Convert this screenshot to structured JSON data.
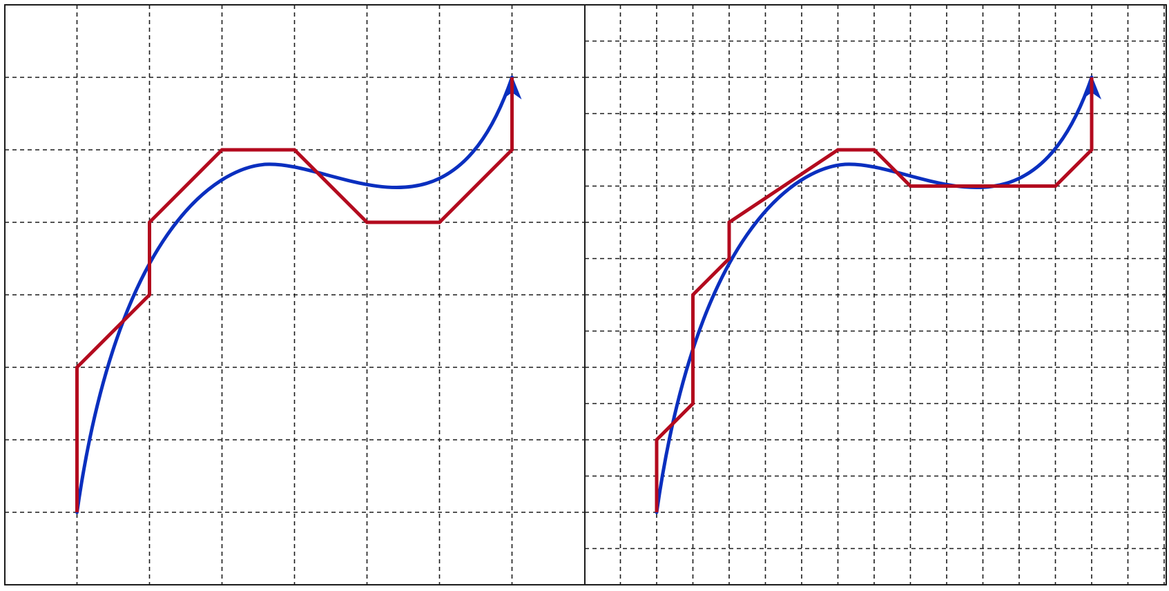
{
  "colors": {
    "curve": "#0a2fbf",
    "staircase": "#b30a1e",
    "grid": "#1a1a1a",
    "frame": "#1a1a1a",
    "background": "#ffffff"
  },
  "panels": [
    {
      "id": "coarse",
      "grid_step": 1,
      "curve": {
        "start": [
          0,
          0
        ],
        "c1": [
          0.55,
          3.85
        ],
        "c2": [
          1.9,
          4.75
        ],
        "mid": [
          2.6,
          4.8
        ],
        "c3": [
          3.6,
          4.85
        ],
        "c4": [
          5.15,
          3.5
        ],
        "end": [
          6,
          6
        ]
      },
      "staircase": [
        [
          0,
          0
        ],
        [
          0,
          2
        ],
        [
          1,
          3
        ],
        [
          1,
          4
        ],
        [
          2,
          5
        ],
        [
          3,
          5
        ],
        [
          4,
          4
        ],
        [
          5,
          4
        ],
        [
          6,
          5
        ],
        [
          6,
          6
        ]
      ]
    },
    {
      "id": "fine",
      "grid_step": 0.5,
      "curve": {
        "start": [
          0,
          0
        ],
        "c1": [
          0.55,
          3.85
        ],
        "c2": [
          1.9,
          4.75
        ],
        "mid": [
          2.6,
          4.8
        ],
        "c3": [
          3.6,
          4.85
        ],
        "c4": [
          5.15,
          3.5
        ],
        "end": [
          6,
          6
        ]
      },
      "staircase": [
        [
          0,
          0
        ],
        [
          0,
          1
        ],
        [
          0.5,
          1.5
        ],
        [
          0.5,
          3
        ],
        [
          1,
          3.5
        ],
        [
          1,
          4
        ],
        [
          2.5,
          5
        ],
        [
          3,
          5
        ],
        [
          3.5,
          4.5
        ],
        [
          5.5,
          4.5
        ],
        [
          6,
          5
        ],
        [
          6,
          6
        ]
      ]
    }
  ]
}
